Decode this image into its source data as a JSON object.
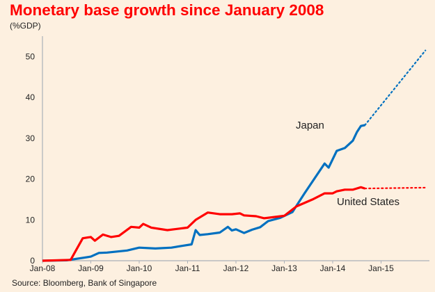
{
  "chart_data": {
    "type": "line",
    "title": "Monetary base growth since January 2008",
    "ylabel": "(%GDP)",
    "source": "Source: Bloomberg, Bank of Singapore",
    "xlim": [
      "2008-01",
      "2015-12"
    ],
    "ylim": [
      0,
      55
    ],
    "yticks": [
      0,
      10,
      20,
      30,
      40,
      50
    ],
    "xticks": [
      {
        "date": "2008-01",
        "label": "Jan-08"
      },
      {
        "date": "2009-01",
        "label": "Jan-09"
      },
      {
        "date": "2010-01",
        "label": "Jan-10"
      },
      {
        "date": "2011-01",
        "label": "Jan-11"
      },
      {
        "date": "2012-01",
        "label": "Jan-12"
      },
      {
        "date": "2013-01",
        "label": "Jan-13"
      },
      {
        "date": "2014-01",
        "label": "Jan-14"
      },
      {
        "date": "2015-01",
        "label": "Jan-15"
      }
    ],
    "grid": false,
    "legend": "inline labels",
    "series": [
      {
        "name": "Japan",
        "color": "#0070c0",
        "actual": [
          [
            "2008-01",
            0
          ],
          [
            "2008-07",
            0.1
          ],
          [
            "2009-01",
            1.0
          ],
          [
            "2009-03",
            1.9
          ],
          [
            "2009-05",
            2.0
          ],
          [
            "2009-10",
            2.5
          ],
          [
            "2010-01",
            3.2
          ],
          [
            "2010-05",
            3.0
          ],
          [
            "2010-09",
            3.2
          ],
          [
            "2010-12",
            3.7
          ],
          [
            "2011-02",
            4.0
          ],
          [
            "2011-03",
            7.5
          ],
          [
            "2011-04",
            6.3
          ],
          [
            "2011-06",
            6.5
          ],
          [
            "2011-09",
            6.9
          ],
          [
            "2011-11",
            8.3
          ],
          [
            "2011-12",
            7.4
          ],
          [
            "2012-01",
            7.7
          ],
          [
            "2012-03",
            6.8
          ],
          [
            "2012-05",
            7.6
          ],
          [
            "2012-07",
            8.2
          ],
          [
            "2012-09",
            9.7
          ],
          [
            "2012-12",
            10.5
          ],
          [
            "2013-03",
            11.9
          ],
          [
            "2013-06",
            16.5
          ],
          [
            "2013-11",
            23.8
          ],
          [
            "2013-12",
            22.8
          ],
          [
            "2014-02",
            26.9
          ],
          [
            "2014-04",
            27.6
          ],
          [
            "2014-06",
            29.4
          ],
          [
            "2014-07",
            31.5
          ],
          [
            "2014-08",
            33.0
          ],
          [
            "2014-09",
            33.2
          ]
        ],
        "projected": [
          [
            "2014-09",
            33.2
          ],
          [
            "2015-12",
            51.5
          ]
        ]
      },
      {
        "name": "United States",
        "color": "#ff0000",
        "actual": [
          [
            "2008-01",
            0
          ],
          [
            "2008-08",
            0.2
          ],
          [
            "2008-11",
            5.5
          ],
          [
            "2009-01",
            5.8
          ],
          [
            "2009-02",
            4.9
          ],
          [
            "2009-04",
            6.4
          ],
          [
            "2009-06",
            5.8
          ],
          [
            "2009-08",
            6.1
          ],
          [
            "2009-11",
            8.3
          ],
          [
            "2010-01",
            8.1
          ],
          [
            "2010-02",
            9.0
          ],
          [
            "2010-04",
            8.1
          ],
          [
            "2010-08",
            7.5
          ],
          [
            "2011-01",
            8.1
          ],
          [
            "2011-03",
            10.0
          ],
          [
            "2011-06",
            11.8
          ],
          [
            "2011-09",
            11.4
          ],
          [
            "2011-12",
            11.4
          ],
          [
            "2012-02",
            11.6
          ],
          [
            "2012-03",
            11.1
          ],
          [
            "2012-06",
            10.9
          ],
          [
            "2012-08",
            10.4
          ],
          [
            "2013-01",
            11.0
          ],
          [
            "2013-04",
            13.3
          ],
          [
            "2013-08",
            15.0
          ],
          [
            "2013-11",
            16.5
          ],
          [
            "2014-01",
            16.5
          ],
          [
            "2014-02",
            17.0
          ],
          [
            "2014-04",
            17.4
          ],
          [
            "2014-06",
            17.4
          ],
          [
            "2014-08",
            18.0
          ],
          [
            "2014-09",
            17.7
          ]
        ],
        "projected": [
          [
            "2014-09",
            17.7
          ],
          [
            "2015-12",
            17.9
          ]
        ]
      }
    ]
  }
}
